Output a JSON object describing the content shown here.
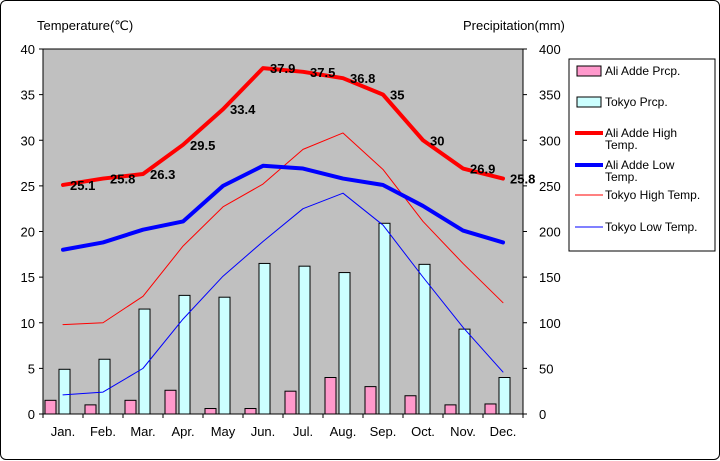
{
  "chart_data": {
    "type": "bar",
    "left_axis_title": "Temperature(℃)",
    "right_axis_title": "Precipitation(mm)",
    "categories": [
      "Jan.",
      "Feb.",
      "Mar.",
      "Apr.",
      "May",
      "Jun.",
      "Jul.",
      "Aug.",
      "Sep.",
      "Oct.",
      "Nov.",
      "Dec."
    ],
    "temp_ticks": [
      "0",
      "5",
      "10",
      "15",
      "20",
      "25",
      "30",
      "35",
      "40"
    ],
    "prcp_ticks": [
      "0",
      "50",
      "100",
      "150",
      "200",
      "250",
      "300",
      "350",
      "400"
    ],
    "temp_lim": [
      0,
      40
    ],
    "prcp_lim": [
      0,
      400
    ],
    "grid": false,
    "legend_position": "right",
    "bar_series": [
      {
        "name": "Ali Adde Prcp.",
        "color": "#ff99cc",
        "values": [
          15,
          10,
          15,
          26,
          6,
          6,
          25,
          40,
          30,
          20,
          10,
          11
        ]
      },
      {
        "name": "Tokyo Prcp.",
        "color": "#ccffff",
        "values": [
          49,
          60,
          115,
          130,
          128,
          165,
          162,
          155,
          209,
          164,
          93,
          40
        ]
      }
    ],
    "line_series": [
      {
        "name": "Ali Adde High Temp.",
        "color": "#ff0000",
        "width": 4,
        "values": [
          25.1,
          25.8,
          26.3,
          29.5,
          33.4,
          37.9,
          37.5,
          36.8,
          35,
          30,
          26.9,
          25.8
        ],
        "labels": [
          "25.1",
          "25.8",
          "26.3",
          "29.5",
          "33.4",
          "37.9",
          "37.5",
          "36.8",
          "35",
          "30",
          "26.9",
          "25.8"
        ]
      },
      {
        "name": "Ali Adde Low Temp.",
        "color": "#0000ff",
        "width": 4,
        "values": [
          18,
          18.8,
          20.2,
          21.1,
          25,
          27.2,
          26.9,
          25.8,
          25.1,
          22.8,
          20.1,
          18.8
        ]
      },
      {
        "name": "Tokyo High Temp.",
        "color": "#ff0000",
        "width": 1,
        "values": [
          9.8,
          10,
          12.9,
          18.4,
          22.7,
          25.2,
          29,
          30.8,
          26.8,
          21.1,
          16.5,
          12.2
        ]
      },
      {
        "name": "Tokyo Low Temp.",
        "color": "#0000ff",
        "width": 1,
        "values": [
          2.1,
          2.4,
          5,
          10.4,
          15.1,
          18.9,
          22.5,
          24.2,
          20.7,
          15,
          9.5,
          4.6
        ]
      }
    ]
  },
  "legend": {
    "items": [
      {
        "kind": "bar",
        "color": "#ff99cc",
        "lines": [
          "Ali Adde Prcp."
        ]
      },
      {
        "kind": "bar",
        "color": "#ccffff",
        "lines": [
          "Tokyo Prcp."
        ]
      },
      {
        "kind": "line",
        "color": "#ff0000",
        "width": 4,
        "lines": [
          "Ali Adde High",
          "Temp."
        ]
      },
      {
        "kind": "line",
        "color": "#0000ff",
        "width": 4,
        "lines": [
          "Ali Adde Low",
          "Temp."
        ]
      },
      {
        "kind": "line",
        "color": "#ff0000",
        "width": 1,
        "lines": [
          "Tokyo High Temp."
        ]
      },
      {
        "kind": "line",
        "color": "#0000ff",
        "width": 1,
        "lines": [
          "Tokyo Low Temp."
        ]
      }
    ]
  }
}
